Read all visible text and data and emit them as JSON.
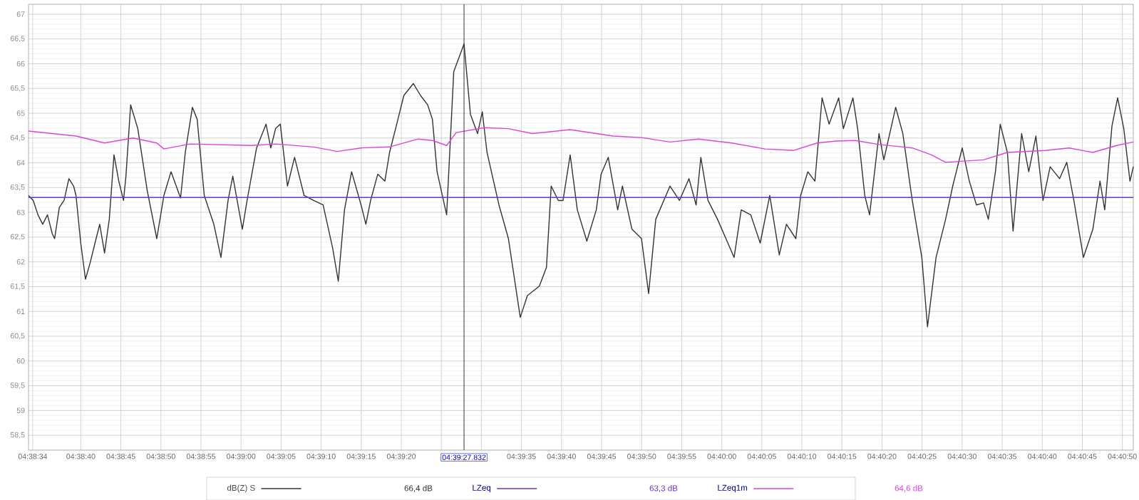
{
  "chart_data": {
    "type": "line",
    "legend": "bottom",
    "grid": true,
    "xlim": [
      4.642631,
      4.680936
    ],
    "ylim": [
      58.2,
      67.2
    ],
    "xticks": [
      {
        "value": 4.642778,
        "label": "04:38:34"
      },
      {
        "value": 4.644444,
        "label": "04:38:40"
      },
      {
        "value": 4.645833,
        "label": "04:38:45"
      },
      {
        "value": 4.647222,
        "label": "04:38:50"
      },
      {
        "value": 4.648611,
        "label": "04:38:55"
      },
      {
        "value": 4.65,
        "label": "04:39:00"
      },
      {
        "value": 4.651389,
        "label": "04:39:05"
      },
      {
        "value": 4.652778,
        "label": "04:39:10"
      },
      {
        "value": 4.654167,
        "label": "04:39:15"
      },
      {
        "value": 4.655556,
        "label": "04:39:20"
      },
      {
        "value": 4.656944,
        "label": null
      },
      {
        "value": 4.658333,
        "label": null
      },
      {
        "value": 4.659722,
        "label": "04:39:35"
      },
      {
        "value": 4.661111,
        "label": "04:39:40"
      },
      {
        "value": 4.6625,
        "label": "04:39:45"
      },
      {
        "value": 4.663889,
        "label": "04:39:50"
      },
      {
        "value": 4.665278,
        "label": "04:39:55"
      },
      {
        "value": 4.666667,
        "label": "04:40:00"
      },
      {
        "value": 4.668056,
        "label": "04:40:05"
      },
      {
        "value": 4.669444,
        "label": "04:40:10"
      },
      {
        "value": 4.670833,
        "label": "04:40:15"
      },
      {
        "value": 4.672222,
        "label": "04:40:20"
      },
      {
        "value": 4.673611,
        "label": "04:40:25"
      },
      {
        "value": 4.675,
        "label": "04:40:30"
      },
      {
        "value": 4.676389,
        "label": "04:40:35"
      },
      {
        "value": 4.677778,
        "label": "04:40:40"
      },
      {
        "value": 4.679167,
        "label": "04:40:45"
      },
      {
        "value": 4.680556,
        "label": "04:40:50"
      }
    ],
    "yticks": [
      {
        "value": 58.5,
        "label": "58,5"
      },
      59,
      {
        "value": 59.5,
        "label": "59,5"
      },
      60,
      {
        "value": 60.5,
        "label": "60,5"
      },
      61,
      {
        "value": 61.5,
        "label": "61,5"
      },
      62,
      {
        "value": 62.5,
        "label": "62,5"
      },
      63,
      {
        "value": 63.5,
        "label": "63,5"
      },
      64,
      {
        "value": 64.5,
        "label": "64,5"
      },
      65,
      {
        "value": 65.5,
        "label": "65,5"
      },
      66,
      {
        "value": 66.5,
        "label": "66,5"
      },
      67
    ],
    "ref_lines": [
      {
        "axis": "x",
        "value": 4.6577311,
        "color": "#333333"
      }
    ],
    "annotations": [
      "66,4 dB",
      "63,3 dB",
      "64,6 dB",
      {
        "text": "04:39:27.832",
        "x": 4.6577311,
        "y": 58.2
      }
    ],
    "series": [
      {
        "name": "dB(Z) S",
        "color": "#333333",
        "x": [
          4.642631,
          4.642795,
          4.642959,
          4.643122,
          4.643289,
          4.643453,
          4.643536,
          4.6437,
          4.643864,
          4.644031,
          4.644195,
          4.644278,
          4.644442,
          4.644606,
          4.644772,
          4.644936,
          4.6451,
          4.645267,
          4.645431,
          4.645595,
          4.645761,
          4.645925,
          4.646009,
          4.646172,
          4.64642,
          4.646747,
          4.647078,
          4.647325,
          4.647572,
          4.647903,
          4.648067,
          4.648314,
          4.648478,
          4.648725,
          4.649056,
          4.649303,
          4.64955,
          4.649714,
          4.650045,
          4.650209,
          4.650539,
          4.650867,
          4.651031,
          4.651197,
          4.651361,
          4.651609,
          4.651856,
          4.652186,
          4.652514,
          4.652845,
          4.653175,
          4.653372,
          4.653586,
          4.653834,
          4.654161,
          4.654328,
          4.654492,
          4.654739,
          4.654986,
          4.65515,
          4.655397,
          4.655645,
          4.655975,
          4.656222,
          4.65647,
          4.656634,
          4.656797,
          4.657128,
          4.657375,
          4.657731,
          4.657953,
          4.6582,
          4.658364,
          4.658528,
          4.658942,
          4.65927,
          4.659681,
          4.659928,
          4.660342,
          4.660589,
          4.660753,
          4.661,
          4.661164,
          4.661411,
          4.661659,
          4.661989,
          4.662317,
          4.662484,
          4.662731,
          4.663059,
          4.663222,
          4.663553,
          4.663884,
          4.664131,
          4.664378,
          4.664872,
          4.6652,
          4.665531,
          4.665778,
          4.665942,
          4.666189,
          4.66652,
          4.667095,
          4.667342,
          4.667672,
          4.668,
          4.668331,
          4.668661,
          4.668909,
          4.669236,
          4.669403,
          4.66965,
          4.669897,
          4.670145,
          4.670389,
          4.67072,
          4.670884,
          4.671214,
          4.671378,
          4.671625,
          4.671792,
          4.67212,
          4.672286,
          4.672697,
          4.672945,
          4.673272,
          4.673603,
          4.6738,
          4.674097,
          4.674428,
          4.674675,
          4.675003,
          4.67525,
          4.675497,
          4.675745,
          4.675909,
          4.676156,
          4.676322,
          4.67657,
          4.676767,
          4.677064,
          4.677311,
          4.677559,
          4.677806,
          4.678053,
          4.678381,
          4.678628,
          4.678875,
          4.679206,
          4.679534,
          4.679781,
          4.679945,
          4.680195,
          4.680392,
          4.680606,
          4.68082,
          4.680936
        ],
        "values": [
          63.34,
          63.24,
          62.95,
          62.76,
          62.95,
          62.57,
          62.47,
          63.1,
          63.24,
          63.68,
          63.53,
          63.34,
          62.38,
          61.65,
          61.99,
          62.38,
          62.76,
          62.18,
          62.86,
          64.16,
          63.63,
          63.24,
          63.73,
          65.17,
          64.69,
          63.44,
          62.47,
          63.34,
          63.82,
          63.29,
          64.21,
          65.12,
          64.88,
          63.34,
          62.76,
          62.09,
          63.24,
          63.73,
          62.66,
          63.24,
          64.3,
          64.78,
          64.3,
          64.69,
          64.78,
          63.53,
          64.11,
          63.34,
          63.24,
          63.15,
          62.28,
          61.61,
          63.05,
          63.82,
          63.15,
          62.76,
          63.24,
          63.77,
          63.63,
          64.21,
          64.78,
          65.36,
          65.6,
          65.36,
          65.17,
          64.88,
          63.82,
          62.95,
          65.84,
          66.4,
          64.98,
          64.59,
          65.03,
          64.21,
          63.15,
          62.47,
          60.88,
          61.32,
          61.51,
          61.89,
          63.53,
          63.24,
          63.24,
          64.16,
          63.05,
          62.42,
          63.05,
          63.77,
          64.11,
          63.05,
          63.53,
          62.66,
          62.47,
          61.36,
          62.86,
          63.53,
          63.24,
          63.68,
          63.15,
          64.11,
          63.24,
          62.86,
          62.09,
          63.05,
          62.95,
          62.38,
          63.34,
          62.14,
          62.76,
          62.47,
          63.34,
          63.82,
          63.63,
          65.31,
          64.78,
          65.31,
          64.69,
          65.31,
          64.69,
          63.34,
          62.95,
          64.59,
          64.06,
          65.12,
          64.59,
          63.24,
          62.09,
          60.69,
          62.09,
          62.86,
          63.53,
          64.3,
          63.63,
          63.15,
          63.19,
          62.86,
          63.82,
          64.78,
          64.21,
          62.62,
          64.59,
          63.82,
          64.54,
          63.24,
          63.92,
          63.68,
          64.01,
          63.24,
          62.09,
          62.66,
          63.63,
          63.05,
          64.74,
          65.31,
          64.69,
          63.63,
          63.92
        ]
      },
      {
        "name": "LZeq",
        "color": "#7030d0",
        "x": [
          4.642631,
          4.680936
        ],
        "values": [
          63.3,
          63.3
        ]
      },
      {
        "name": "LZeq1m",
        "color": "#e040e0",
        "x": [
          4.642631,
          4.644278,
          4.645267,
          4.646256,
          4.647078,
          4.647325,
          4.648231,
          4.650372,
          4.651197,
          4.652514,
          4.653339,
          4.654161,
          4.65515,
          4.656139,
          4.656634,
          4.657128,
          4.657459,
          4.658447,
          4.65927,
          4.660095,
          4.661411,
          4.662895,
          4.663884,
          4.664872,
          4.665859,
          4.667014,
          4.668167,
          4.669156,
          4.669978,
          4.670636,
          4.671297,
          4.67212,
          4.673272,
          4.673934,
          4.674428,
          4.675745,
          4.67657,
          4.677886,
          4.678709,
          4.679534,
          4.680359,
          4.680936
        ],
        "values": [
          64.64,
          64.54,
          64.4,
          64.5,
          64.4,
          64.28,
          64.38,
          64.35,
          64.38,
          64.32,
          64.23,
          64.3,
          64.32,
          64.48,
          64.45,
          64.35,
          64.61,
          64.71,
          64.69,
          64.59,
          64.67,
          64.54,
          64.51,
          64.42,
          64.48,
          64.4,
          64.28,
          64.25,
          64.4,
          64.44,
          64.45,
          64.37,
          64.3,
          64.16,
          64.01,
          64.06,
          64.21,
          64.25,
          64.3,
          64.21,
          64.35,
          64.42
        ]
      }
    ]
  }
}
